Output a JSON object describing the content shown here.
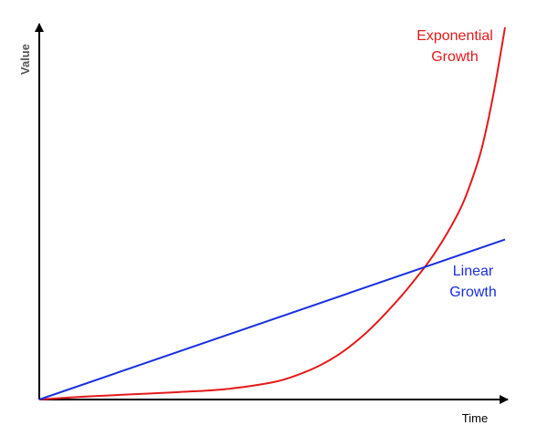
{
  "chart_data": {
    "type": "line",
    "title": "",
    "xlabel": "Time",
    "ylabel": "Value",
    "grid": false,
    "legend": "direct labels",
    "ticks": "none",
    "xlim": [
      0,
      10
    ],
    "ylim": [
      0,
      10
    ],
    "series": [
      {
        "name": "Exponential\nGrowth",
        "label_lines": [
          "Exponential",
          "Growth"
        ],
        "color": "#e41a1a",
        "x": [
          0,
          1,
          2,
          3,
          4,
          5,
          5.5,
          6,
          6.5,
          7,
          7.5,
          8,
          8.5,
          9,
          9.25,
          9.5,
          9.75,
          10
        ],
        "y": [
          0.0,
          0.08,
          0.14,
          0.2,
          0.28,
          0.46,
          0.64,
          0.9,
          1.27,
          1.77,
          2.4,
          3.12,
          3.95,
          5.02,
          5.77,
          6.75,
          8.2,
          10.0
        ]
      },
      {
        "name": "Linear\nGrowth",
        "label_lines": [
          "Linear",
          "Growth"
        ],
        "color": "#1a2fe0",
        "x": [
          0,
          10
        ],
        "y": [
          0,
          4.3
        ]
      }
    ]
  }
}
